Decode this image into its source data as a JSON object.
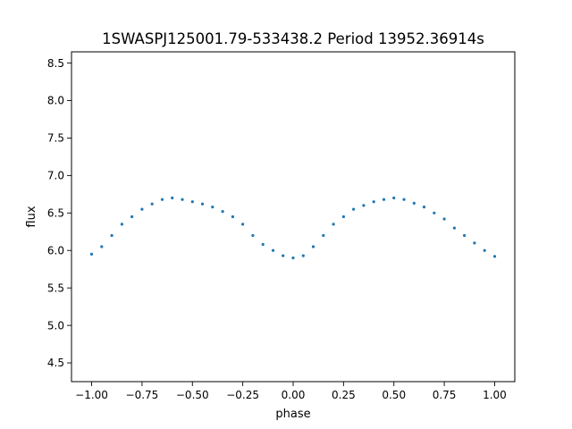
{
  "chart_data": {
    "type": "scatter",
    "title": "1SWASPJ125001.79-533438.2 Period 13952.36914s",
    "xlabel": "phase",
    "ylabel": "flux",
    "xlim": [
      -1.1,
      1.1
    ],
    "ylim": [
      4.25,
      8.65
    ],
    "x_ticks": [
      -1.0,
      -0.75,
      -0.5,
      -0.25,
      0.0,
      0.25,
      0.5,
      0.75,
      1.0
    ],
    "x_tick_labels": [
      "−1.00",
      "−0.75",
      "−0.50",
      "−0.25",
      "0.00",
      "0.25",
      "0.50",
      "0.75",
      "1.00"
    ],
    "y_ticks": [
      4.5,
      5.0,
      5.5,
      6.0,
      6.5,
      7.0,
      7.5,
      8.0,
      8.5
    ],
    "y_tick_labels": [
      "4.5",
      "5.0",
      "5.5",
      "6.0",
      "6.5",
      "7.0",
      "7.5",
      "8.0",
      "8.5"
    ],
    "grid": false,
    "legend": "none",
    "marker_color": "#1f77b4",
    "series": [
      {
        "x": [
          -1.0,
          -0.95,
          -0.9,
          -0.85,
          -0.8,
          -0.75,
          -0.7,
          -0.65,
          -0.6,
          -0.55,
          -0.5,
          -0.45,
          -0.4,
          -0.35,
          -0.3,
          -0.25,
          -0.2,
          -0.15,
          -0.1,
          -0.05,
          0.0,
          0.05,
          0.1,
          0.15,
          0.2,
          0.25,
          0.3,
          0.35,
          0.4,
          0.45,
          0.5,
          0.55,
          0.6,
          0.65,
          0.7,
          0.75,
          0.8,
          0.85,
          0.9,
          0.95,
          1.0
        ],
        "y": [
          5.95,
          6.05,
          6.2,
          6.35,
          6.45,
          6.55,
          6.62,
          6.68,
          6.7,
          6.68,
          6.65,
          6.62,
          6.58,
          6.52,
          6.45,
          6.35,
          6.2,
          6.08,
          6.0,
          5.93,
          5.9,
          5.93,
          6.05,
          6.2,
          6.35,
          6.45,
          6.55,
          6.6,
          6.65,
          6.68,
          6.7,
          6.68,
          6.63,
          6.58,
          6.5,
          6.42,
          6.3,
          6.2,
          6.1,
          6.0,
          5.92
        ]
      }
    ]
  }
}
